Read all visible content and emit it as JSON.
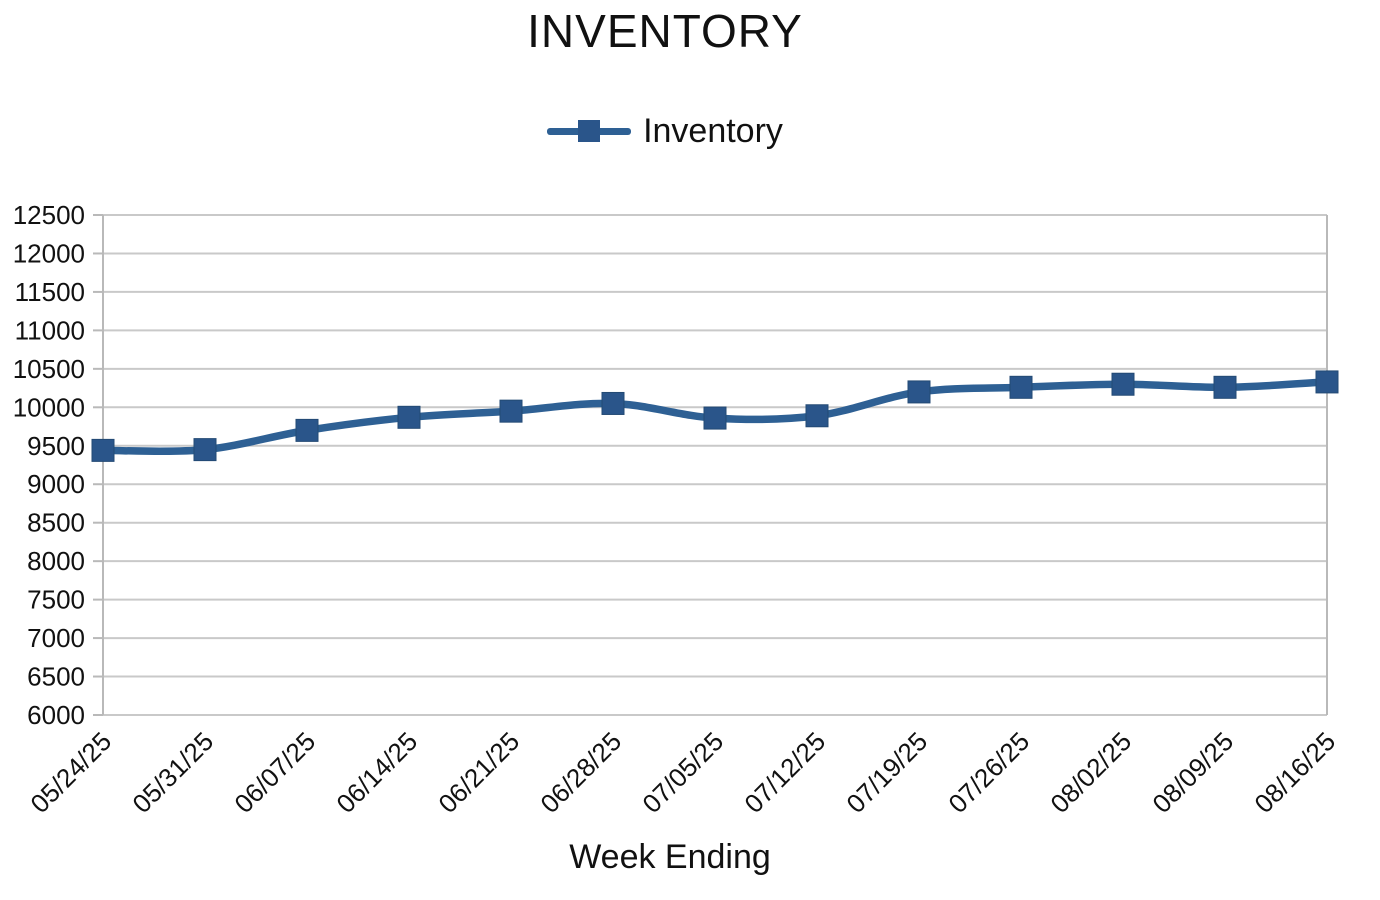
{
  "page": {
    "background": "#ffffff"
  },
  "header": {
    "title": "INVENTORY"
  },
  "legend": {
    "label": "Inventory",
    "position": "top-center"
  },
  "axis": {
    "x_title": "Week Ending"
  },
  "colors": {
    "series_line": "#2e6094",
    "marker_fill": "#2a558a",
    "marker_border": "#234a74",
    "gridline": "#c9c9c9",
    "axis_line": "#b9b9b9",
    "text": "#111111"
  },
  "chart_data": {
    "type": "line",
    "title": "INVENTORY",
    "xlabel": "Week Ending",
    "ylabel": "",
    "legend_position": "top-center",
    "grid": "horizontal",
    "smooth": true,
    "x_tick_rotation": -45,
    "ylim": [
      6000,
      12500
    ],
    "ytick_step": 500,
    "categories": [
      "05/24/25",
      "05/31/25",
      "06/07/25",
      "06/14/25",
      "06/21/25",
      "06/28/25",
      "07/05/25",
      "07/12/25",
      "07/19/25",
      "07/26/25",
      "08/02/25",
      "08/09/25",
      "08/16/25"
    ],
    "series": [
      {
        "name": "Inventory",
        "marker": "square",
        "values": [
          9440,
          9450,
          9700,
          9870,
          9950,
          10050,
          9860,
          9890,
          10200,
          10260,
          10300,
          10260,
          10330
        ]
      }
    ]
  }
}
